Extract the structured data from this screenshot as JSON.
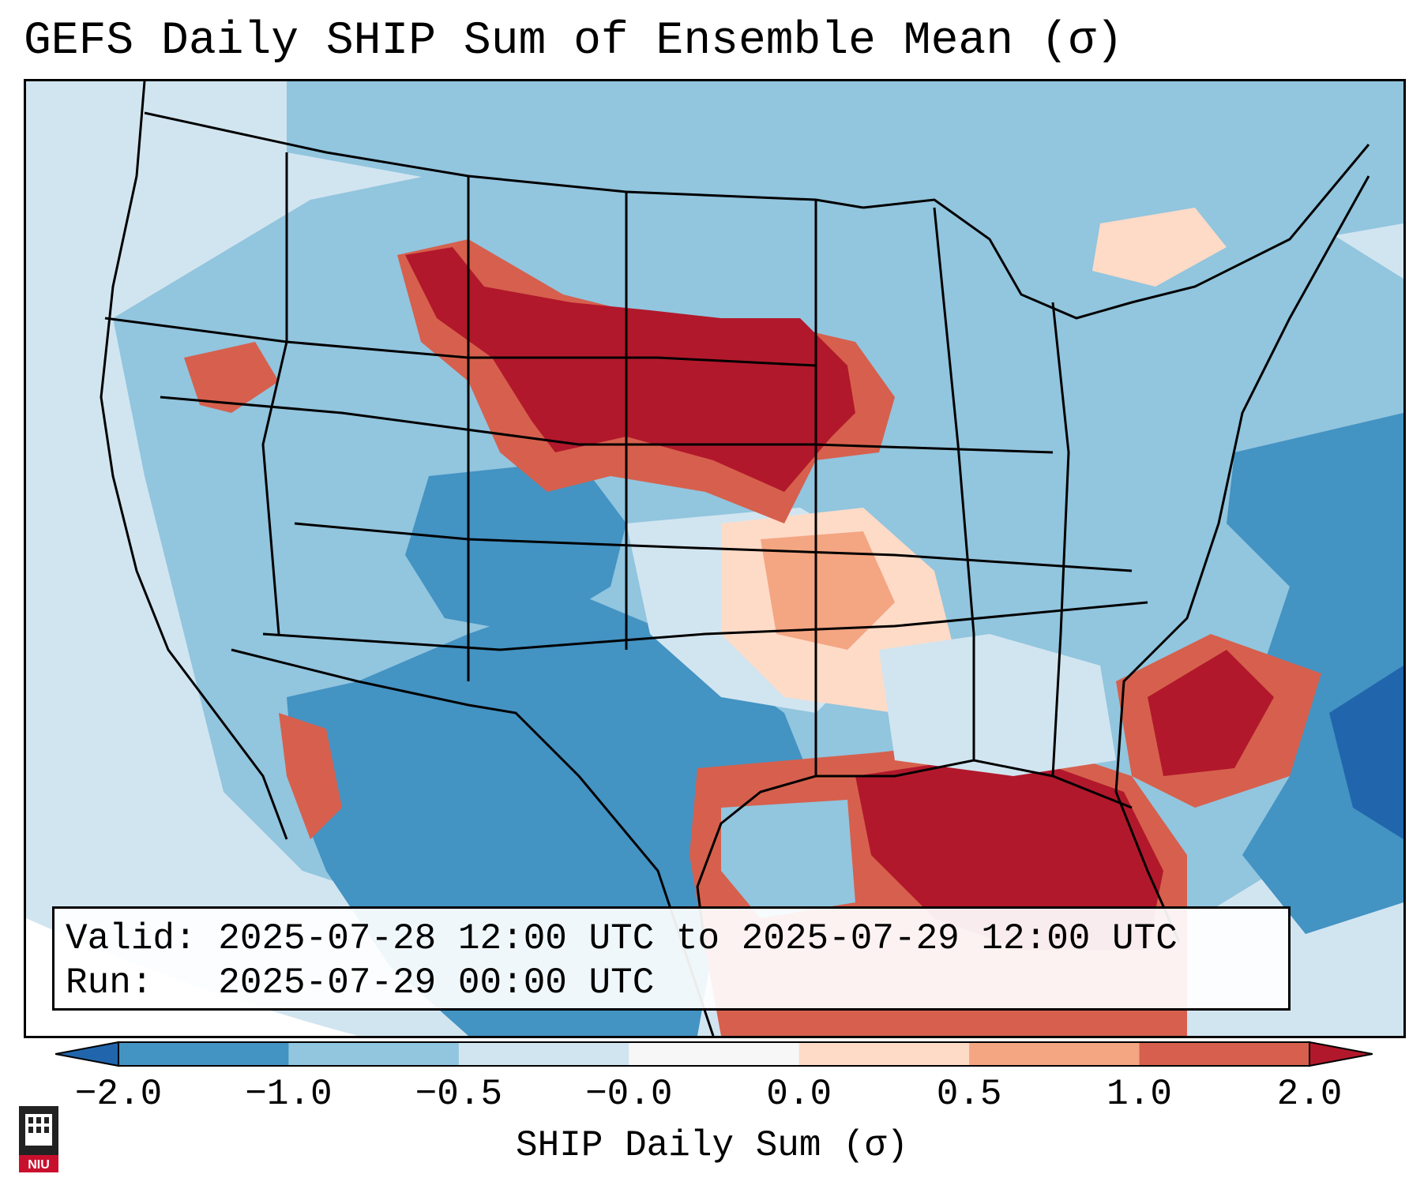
{
  "title": "GEFS Daily SHIP Sum of Ensemble Mean (σ)",
  "info": {
    "valid": "Valid: 2025-07-28 12:00 UTC to 2025-07-29 12:00 UTC",
    "run": "Run:   2025-07-29 00:00 UTC"
  },
  "colorbar": {
    "label": "SHIP Daily Sum (σ)",
    "ticks": [
      "−2.0",
      "−1.0",
      "−0.5",
      "−0.0",
      "0.0",
      "0.5",
      "1.0",
      "2.0"
    ],
    "colors": {
      "under": "#2166ac",
      "bins": [
        "#4393c3",
        "#92c5de",
        "#d1e5f0",
        "#f7f7f7",
        "#fddbc7",
        "#f4a582",
        "#d6604d"
      ],
      "over": "#b2182b"
    }
  },
  "map": {
    "background": "#d2e6f1",
    "field_note": "Gridded SHIP sigma anomaly over CONUS"
  },
  "logo": {
    "text": "NIU"
  }
}
